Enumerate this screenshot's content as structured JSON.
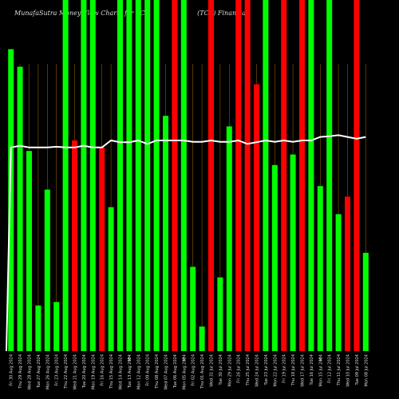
{
  "chart_data": {
    "type": "bar",
    "title": "MunafaSutra  Money Flow  Charts for TCF",
    "subtitle": "(TCF) Financial",
    "colors": {
      "up": "#00ff00",
      "down": "#ff0000",
      "line": "#ffffff",
      "grid": "#8a5a00",
      "background": "#000000"
    },
    "bar_range": [
      0,
      100
    ],
    "line_range": [
      0,
      100
    ],
    "categories": [
      "Fri 30 Aug 2024",
      "Thu 29 Aug 2024",
      "Wed 28 Aug 2024",
      "Tue 27 Aug 2024",
      "Mon 26 Aug 2024",
      "Fri 23 Aug 2024",
      "Thu 22 Aug 2024",
      "Wed 21 Aug 2024",
      "Tue 20 Aug 2024",
      "Mon 19 Aug 2024",
      "Fri 16 Aug 2024",
      "Thu 15 Aug 2024",
      "Wed 14 Aug 2024",
      "Tue 13 Aug 2024",
      "Mon 12 Aug 2024",
      "Fri 09 Aug 2024",
      "Thu 08 Aug 2024",
      "Wed 07 Aug 2024",
      "Tue 06 Aug 2024",
      "Mon 05 Aug 2024",
      "Fri 02 Aug 2024",
      "Thu 01 Aug 2024",
      "Wed 31 Jul 2024",
      "Tue 30 Jul 2024",
      "Mon 29 Jul 2024",
      "Fri 26 Jul 2024",
      "Thu 25 Jul 2024",
      "Wed 24 Jul 2024",
      "Tue 23 Jul 2024",
      "Mon 22 Jul 2024",
      "Fri 19 Jul 2024",
      "Thu 18 Jul 2024",
      "Wed 17 Jul 2024",
      "Tue 16 Jul 2024",
      "Mon 15 Jul 2024",
      "Fri 12 Jul 2024",
      "Thu 11 Jul 2024",
      "Wed 10 Jul 2024",
      "Tue 09 Jul 2024",
      "Mon 08 Jul 2024"
    ],
    "values": [
      86,
      81,
      57,
      13,
      46,
      14,
      100,
      60,
      100,
      100,
      58,
      41,
      100,
      100,
      100,
      100,
      100,
      67,
      100,
      100,
      24,
      7,
      100,
      21,
      64,
      100,
      100,
      76,
      100,
      53,
      100,
      56,
      100,
      100,
      47,
      100,
      39,
      44,
      100,
      28
    ],
    "directions": [
      "up",
      "up",
      "up",
      "up",
      "up",
      "up",
      "up",
      "down",
      "up",
      "up",
      "down",
      "up",
      "up",
      "up",
      "up",
      "up",
      "up",
      "up",
      "down",
      "up",
      "up",
      "up",
      "down",
      "up",
      "up",
      "down",
      "down",
      "down",
      "up",
      "up",
      "down",
      "up",
      "down",
      "up",
      "up",
      "up",
      "up",
      "down",
      "down",
      "up"
    ],
    "line_values": [
      58,
      58.5,
      58,
      58,
      58,
      58.2,
      58,
      58,
      58.5,
      58,
      58,
      60,
      59.5,
      59.5,
      60,
      59,
      60,
      60,
      60,
      60,
      59.6,
      59.6,
      60,
      59.6,
      59.6,
      60,
      59,
      59.5,
      60,
      59.6,
      60,
      59.6,
      60,
      60,
      61,
      61.2,
      61.5,
      61,
      60.5,
      61
    ],
    "annotations": [
      {
        "index": 13,
        "text": "$"
      },
      {
        "index": 19,
        "text": "$"
      },
      {
        "index": 34,
        "text": "$"
      }
    ]
  }
}
